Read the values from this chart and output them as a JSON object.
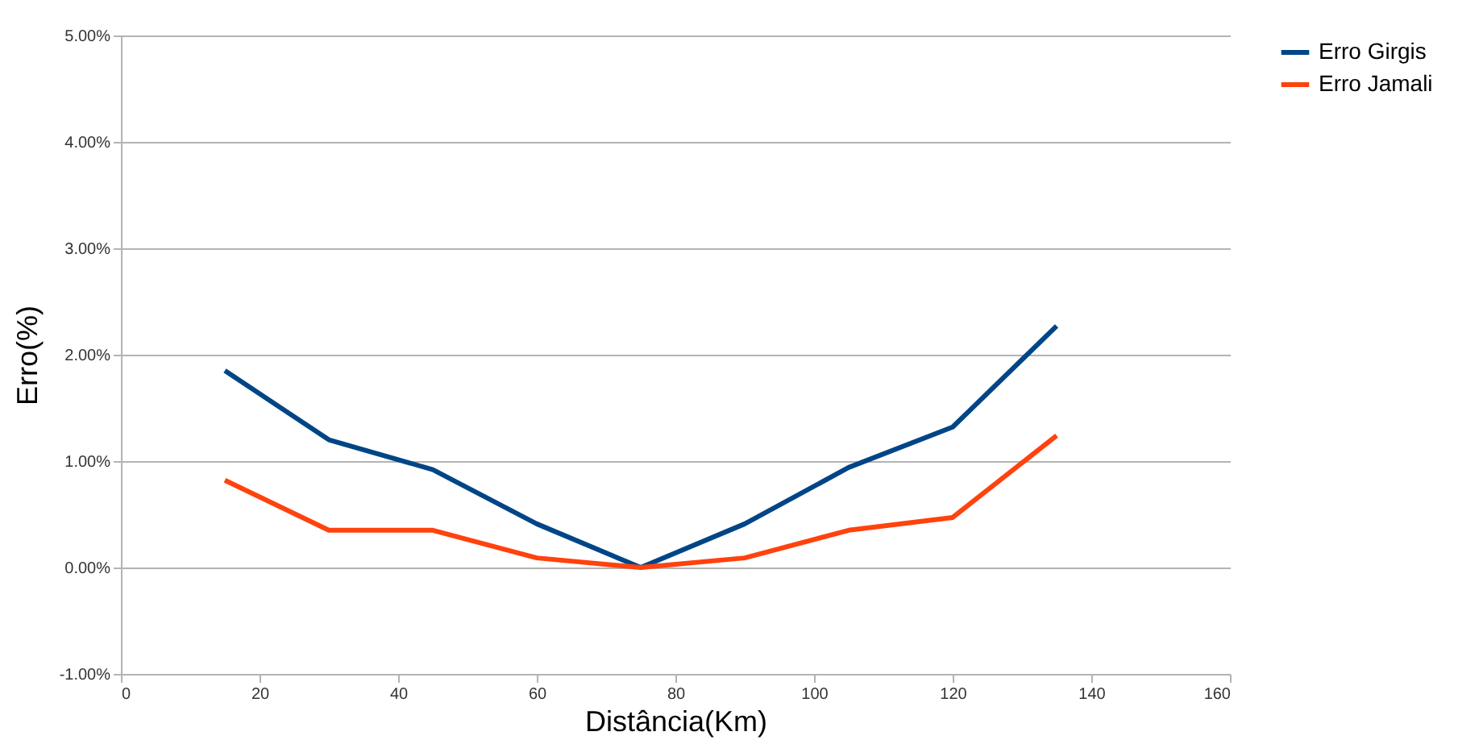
{
  "chart_data": {
    "type": "line",
    "xlabel": "Distância(Km)",
    "ylabel": "Erro(%)",
    "x": [
      15,
      30,
      45,
      60,
      75,
      90,
      105,
      120,
      135
    ],
    "series": [
      {
        "name": "Erro Girgis",
        "color": "#004586",
        "values": [
          1.85,
          1.2,
          0.92,
          0.41,
          0,
          0.41,
          0.94,
          1.32,
          2.27
        ]
      },
      {
        "name": "Erro Jamali",
        "color": "#ff420e",
        "values": [
          0.82,
          0.35,
          0.35,
          0.09,
          0,
          0.09,
          0.35,
          0.47,
          1.24
        ]
      }
    ],
    "xlim": [
      0,
      160
    ],
    "xticks": [
      0,
      20,
      40,
      60,
      80,
      100,
      120,
      140,
      160
    ],
    "ylim": [
      -1,
      5
    ],
    "yticks": [
      {
        "value": -1,
        "label": "-1.00%"
      },
      {
        "value": 0,
        "label": "0.00%"
      },
      {
        "value": 1,
        "label": "1.00%"
      },
      {
        "value": 2,
        "label": "2.00%"
      },
      {
        "value": 3,
        "label": "3.00%"
      },
      {
        "value": 4,
        "label": "4.00%"
      },
      {
        "value": 5,
        "label": "5.00%"
      }
    ],
    "grid": "y",
    "legend": "right",
    "marker": "none",
    "line_style": "solid"
  }
}
